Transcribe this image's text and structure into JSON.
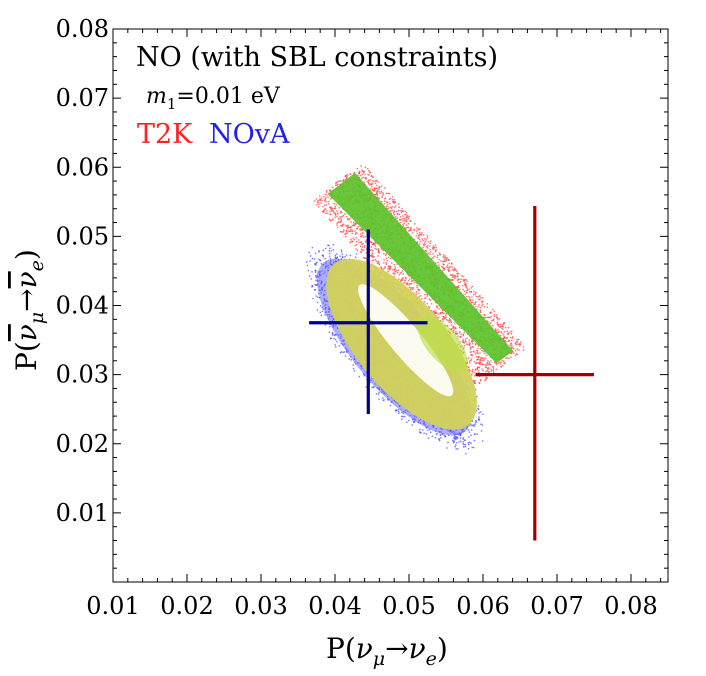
{
  "chart_data": {
    "type": "scatter",
    "title": "NO (with SBL constraints)",
    "subtitle": "m1=0.01 eV",
    "subtitle_parts": {
      "symbol": "m",
      "subscript": "1",
      "rest": "=0.01 eV"
    },
    "xlabel": "P(ν_μ→ν_e)",
    "ylabel": "P(ν̄_μ→ν̄_e)",
    "xlabel_parts": {
      "pre": "P(",
      "nu1": "ν",
      "sub1": "μ",
      "arrow": "→",
      "nu2": "ν",
      "sub2": "e",
      "post": ")"
    },
    "ylabel_parts": {
      "pre": "P(",
      "nu1": "ν",
      "sub1": "μ",
      "arrow": "→",
      "nu2": "ν",
      "sub2": "e",
      "post": ")"
    },
    "xlim": [
      0.01,
      0.085
    ],
    "ylim": [
      0.0,
      0.08
    ],
    "xticks": [
      "0.01",
      "0.02",
      "0.03",
      "0.04",
      "0.05",
      "0.06",
      "0.07",
      "0.08"
    ],
    "yticks": [
      "0.01",
      "0.02",
      "0.03",
      "0.04",
      "0.05",
      "0.06",
      "0.07",
      "0.08"
    ],
    "grid": false,
    "legend": [
      {
        "name": "T2K",
        "color": "#ff2020"
      },
      {
        "name": "NOvA",
        "color": "#2020ee"
      }
    ],
    "regions": [
      {
        "name": "T2K",
        "shape": "band",
        "color": "#ff3b3b",
        "fill_color": "#5cc22a",
        "corners": [
          [
            0.0385,
            0.0557
          ],
          [
            0.0428,
            0.0593
          ],
          [
            0.0642,
            0.0335
          ],
          [
            0.0613,
            0.0312
          ]
        ]
      },
      {
        "name": "NOvA",
        "shape": "ellipse",
        "color": "#3a3aff",
        "fill_color": "#d2d25a",
        "center": [
          0.049,
          0.0344
        ],
        "radius_along_major": 0.0135,
        "radius_along_minor": 0.003,
        "major_direction_data_units": [
          0.74,
          -0.95
        ],
        "outer_center": [
          0.048,
          0.034
        ],
        "outer_radius_along_major": 0.016,
        "outer_radius_along_minor": 0.0058
      }
    ],
    "error_bars": [
      {
        "name": "T2K",
        "color": "#a00000",
        "x": 0.067,
        "y": 0.03,
        "x_range": [
          0.059,
          0.075
        ],
        "y_range": [
          0.006,
          0.0544
        ]
      },
      {
        "name": "NOvA",
        "color": "#00008b",
        "x": 0.0445,
        "y": 0.0375,
        "x_range": [
          0.0365,
          0.0525
        ],
        "y_range": [
          0.0243,
          0.051
        ]
      }
    ]
  }
}
